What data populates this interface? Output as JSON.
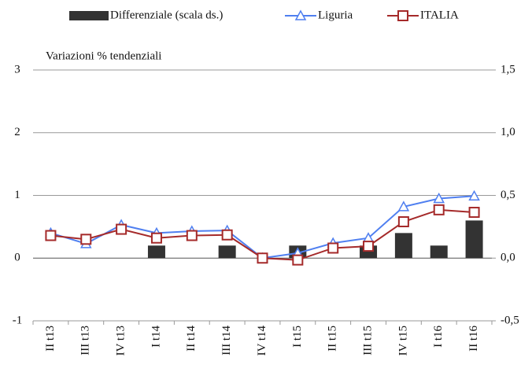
{
  "chart_data": {
    "type": "bar-line",
    "subtitle": "Variazioni % tendenziali",
    "categories": [
      "II t13",
      "III t13",
      "IV t13",
      "I t14",
      "II t14",
      "III t14",
      "IV t14",
      "I t15",
      "II t15",
      "III t15",
      "IV t15",
      "I t16",
      "II t16"
    ],
    "series": [
      {
        "name": "Differenziale (scala ds.)",
        "type": "bar",
        "axis": "y2",
        "color": "#333333",
        "values": [
          0,
          0,
          0,
          0.1,
          0,
          0.1,
          0,
          0.1,
          0,
          0.1,
          0.2,
          0.1,
          0.3
        ]
      },
      {
        "name": "Liguria",
        "type": "line",
        "color": "#4f7ff0",
        "marker": "triangle",
        "values": [
          0.4,
          0.23,
          0.53,
          0.4,
          0.43,
          0.44,
          0.0,
          0.08,
          0.24,
          0.32,
          0.82,
          0.95,
          0.99
        ]
      },
      {
        "name": "ITALIA",
        "type": "line",
        "color": "#a52a2a",
        "marker": "square",
        "values": [
          0.36,
          0.3,
          0.46,
          0.32,
          0.36,
          0.37,
          0.0,
          -0.03,
          0.16,
          0.19,
          0.58,
          0.77,
          0.73
        ]
      }
    ],
    "ylim": [
      -1,
      3
    ],
    "yticks": [
      -1,
      0,
      1,
      2,
      3
    ],
    "y2lim": [
      -0.5,
      1.5
    ],
    "y2ticks": [
      {
        "value": -0.5,
        "label": "-0,5"
      },
      {
        "value": 0,
        "label": "0,0"
      },
      {
        "value": 0.5,
        "label": "0,5"
      },
      {
        "value": 1,
        "label": "1,0"
      },
      {
        "value": 1.5,
        "label": "1,5"
      }
    ],
    "grid": true
  }
}
